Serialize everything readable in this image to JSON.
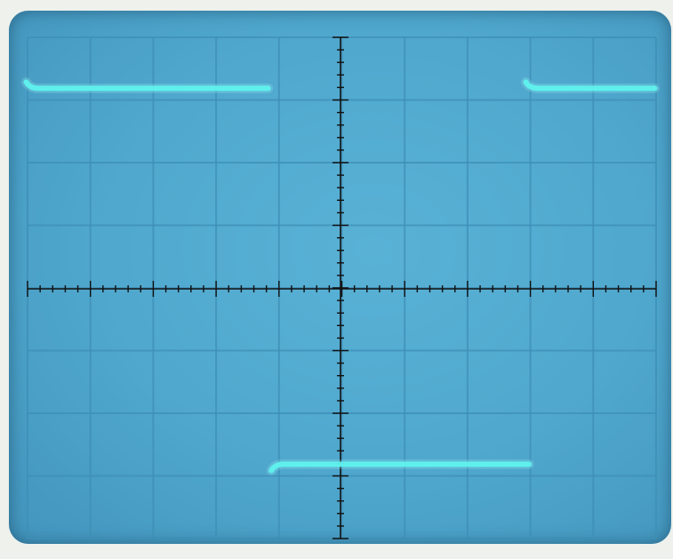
{
  "scope": {
    "graticule": {
      "divisions_x": 10,
      "divisions_y": 8,
      "minor_per_division": 5
    },
    "trace": {
      "waveform": "square",
      "color": "#5ff2ee",
      "duty_cycle": 0.5,
      "high_level_div": 3.2,
      "low_level_div": -2.8,
      "segments": [
        {
          "level": "high",
          "start_div": -5.0,
          "end_div": -1.15
        },
        {
          "level": "low",
          "start_div": -1.1,
          "end_div": 3.0
        },
        {
          "level": "high",
          "start_div": 2.95,
          "end_div": 5.0
        }
      ]
    }
  },
  "colors": {
    "screen": "#4fa7cd",
    "bezel": "#eef1ec",
    "grid": "#3e8fb6",
    "axis": "#111111"
  }
}
